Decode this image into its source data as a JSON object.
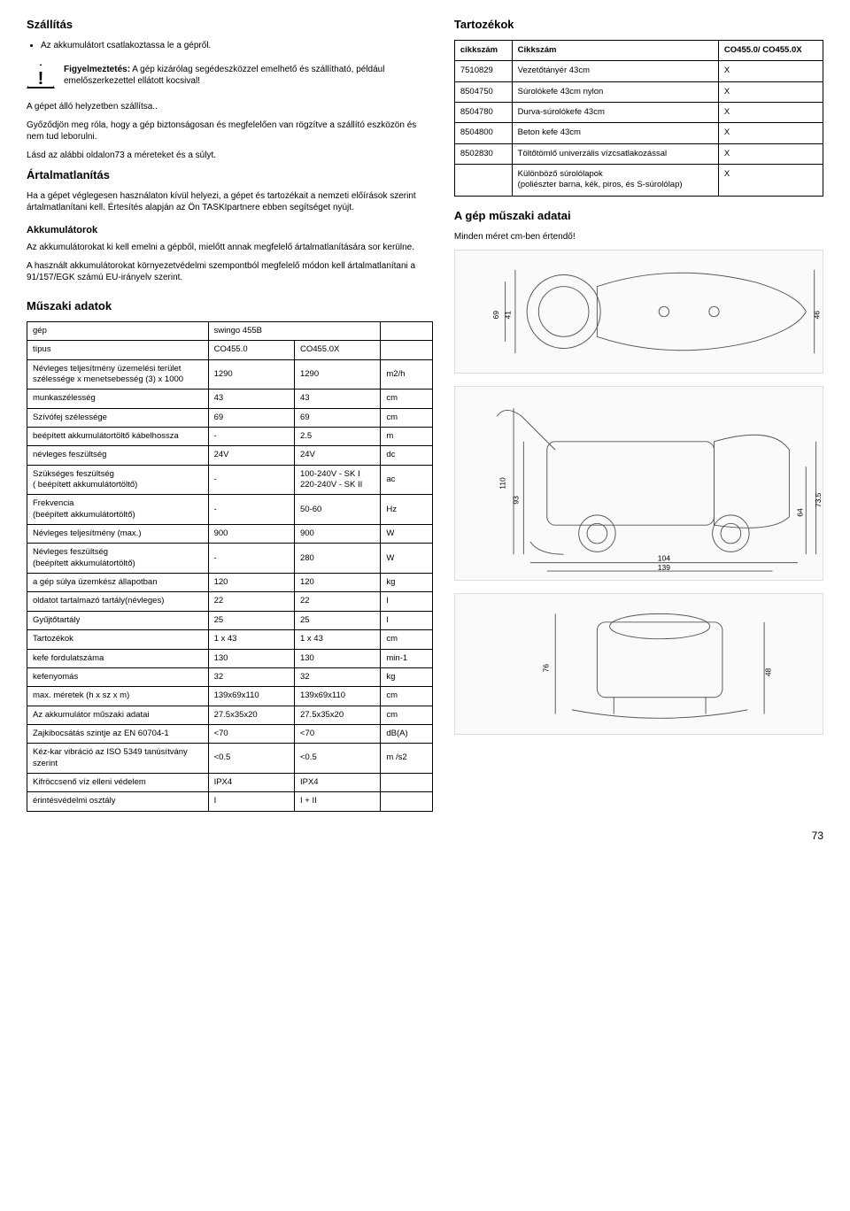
{
  "left": {
    "h_shipping": "Szállítás",
    "shipping_bullet": "Az akkumulátort csatlakoztassa le a gépről.",
    "warn_title": "Figyelmeztetés:",
    "warn_text": "A gép kizárólag segédeszközzel emelhető és szállítható, például emelőszerkezettel ellátott kocsival!",
    "p_upright": "A gépet álló helyzetben szállítsa..",
    "p_secure": "Győződjön meg róla, hogy a gép biztonságosan és megfelelően van rögzítve a szállító eszközön és nem tud leborulni.",
    "p_seebelow": "Lásd az alábbi oldalon73 a méreteket és a súlyt.",
    "h_disposal": "Ártalmatlanítás",
    "p_disposal": "Ha a gépet véglegesen használaton kívül helyezi, a gépet és tartozékait a nemzeti előírások szerint ártalmatlanítani kell. Értesítés alapján az Ön TASKIpartnere ebben segítséget nyújt.",
    "h_batt": "Akkumulátorok",
    "p_batt1": "Az akkumulátorokat ki kell emelni a gépből, mielőtt annak megfelelő ártalmatlanítására sor kerülne.",
    "p_batt2": "A használt akkumulátorokat környezetvédelmi szempontból megfelelő módon kell ártalmatlanítani a  91/157/EGK számú EU-irányelv szerint.",
    "h_tech": "Műszaki adatok"
  },
  "right": {
    "h_acc": "Tartozékok",
    "acc_head": {
      "c1": "cikkszám",
      "c2": "Cikkszám",
      "c3": "CO455.0/ CO455.0X"
    },
    "acc_rows": [
      {
        "c1": "7510829",
        "c2": "Vezetőtányér  43cm",
        "c3": "X"
      },
      {
        "c1": "8504750",
        "c2": "Súrolókefe 43cm nylon",
        "c3": "X"
      },
      {
        "c1": "8504780",
        "c2": "Durva-súrolókefe 43cm",
        "c3": "X"
      },
      {
        "c1": "8504800",
        "c2": "Beton kefe 43cm",
        "c3": "X"
      },
      {
        "c1": "8502830",
        "c2": "Töltőtömlő univerzális vízcsatlakozással",
        "c3": "X"
      },
      {
        "c1": "",
        "c2": "Különböző súrolólapok\n(poliészter barna, kék, piros, és S-súrolólap)",
        "c3": "X"
      }
    ],
    "h_dims": "A gép műszaki adatai",
    "p_dims": "Minden méret cm-ben értendő!"
  },
  "spec": {
    "rows": [
      {
        "label": "gép",
        "v1": "swingo 455B",
        "v2": "",
        "unit": "",
        "span12": true
      },
      {
        "label": "típus",
        "v1": "CO455.0",
        "v2": "CO455.0X",
        "unit": ""
      },
      {
        "label": "Névleges teljesítmény üzemelési terület szélessége x menetsebesség (3) x 1000",
        "v1": "1290",
        "v2": "1290",
        "unit": "m2/h"
      },
      {
        "label": "munkaszélesség",
        "v1": "43",
        "v2": "43",
        "unit": "cm"
      },
      {
        "label": "Szívófej szélessége",
        "v1": "69",
        "v2": "69",
        "unit": "cm"
      },
      {
        "label": "beépített akkumulátortöltő kábelhossza",
        "v1": "-",
        "v2": "2.5",
        "unit": "m"
      },
      {
        "label": "névleges feszültség",
        "v1": "24V",
        "v2": "24V",
        "unit": "dc"
      },
      {
        "label": "Szükséges feszültség\n( beépített akkumulátortöltő)",
        "v1": "-",
        "v2": "100-240V - SK I\n220-240V - SK II",
        "unit": "ac"
      },
      {
        "label": "Frekvencia\n(beépített akkumulátortöltő)",
        "v1": "-",
        "v2": "50-60",
        "unit": "Hz"
      },
      {
        "label": "Névleges teljesítmény (max.)",
        "v1": "900",
        "v2": "900",
        "unit": "W"
      },
      {
        "label": "Névleges feszültség\n(beépített akkumulátortöltő)",
        "v1": "-",
        "v2": "280",
        "unit": "W"
      },
      {
        "label": "a gép súlya üzemkész állapotban",
        "v1": "120",
        "v2": "120",
        "unit": "kg"
      },
      {
        "label": "oldatot tartalmazó tartály(névleges)",
        "v1": "22",
        "v2": "22",
        "unit": "l"
      },
      {
        "label": "Gyűjtőtartály",
        "v1": "25",
        "v2": "25",
        "unit": "l"
      },
      {
        "label": "Tartozékok",
        "v1": "1 x 43",
        "v2": "1 x 43",
        "unit": "cm"
      },
      {
        "label": "kefe fordulatszáma",
        "v1": "130",
        "v2": "130",
        "unit": "min-1"
      },
      {
        "label": "kefenyomás",
        "v1": "32",
        "v2": "32",
        "unit": "kg"
      },
      {
        "label": "max. méretek (h x sz x m)",
        "v1": "139x69x110",
        "v2": "139x69x110",
        "unit": "cm"
      },
      {
        "label": "Az akkumulátor műszaki adatai",
        "v1": "27.5x35x20",
        "v2": "27.5x35x20",
        "unit": "cm"
      },
      {
        "label": "Zajkibocsátás szintje az EN 60704-1",
        "v1": "<70",
        "v2": "<70",
        "unit": "dB(A)"
      },
      {
        "label": "Kéz-kar vibráció az ISO 5349 tanúsítvány szerint",
        "v1": "<0.5",
        "v2": "<0.5",
        "unit": "m /s2"
      },
      {
        "label": "Kifröccsenő víz elleni védelem",
        "v1": "IPX4",
        "v2": "IPX4",
        "unit": ""
      },
      {
        "label": "érintésvédelmi osztály",
        "v1": "I",
        "v2": "I + II",
        "unit": ""
      }
    ]
  },
  "diagrams": {
    "top": {
      "h": "69",
      "hi": "41",
      "w": "46"
    },
    "side": {
      "h": "110",
      "hi": "93",
      "w1": "139",
      "w2": "104",
      "r1": "64",
      "r2": "73.5"
    },
    "rear": {
      "h": "76",
      "w": "48"
    }
  },
  "hu_tab": "hu",
  "pagenum": "73"
}
